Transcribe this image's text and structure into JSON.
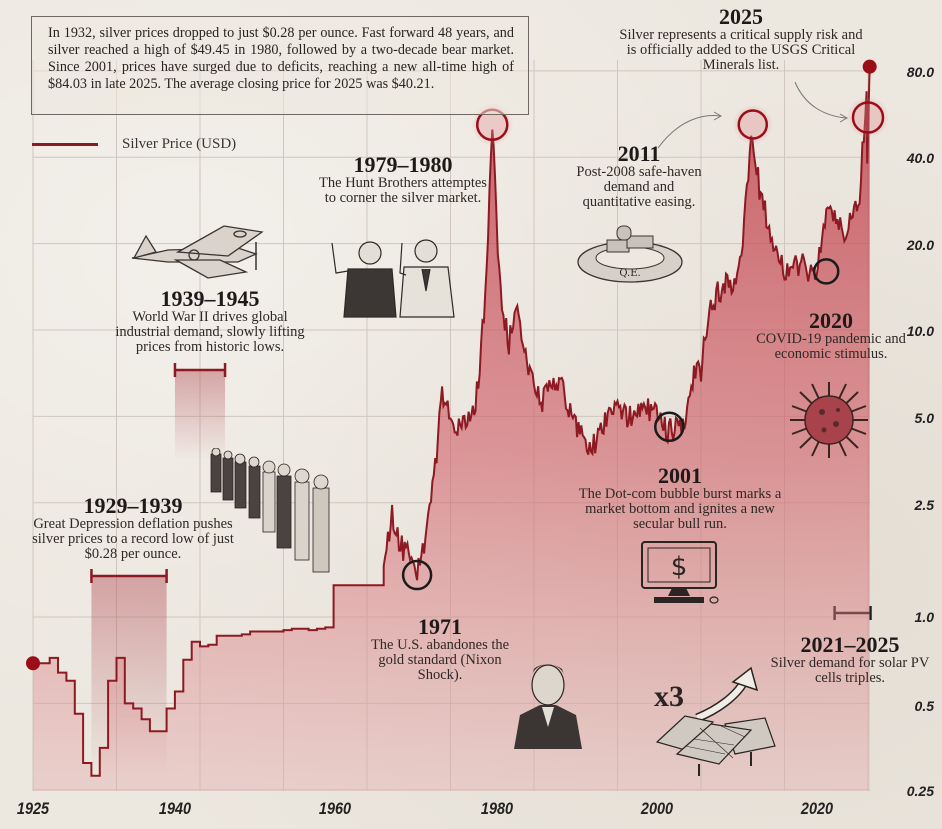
{
  "intro": {
    "text": "In 1932, silver prices dropped to just $0.28 per ounce. Fast forward 48 years, and silver reached a high of $49.45 in 1980, followed by a two-decade bear market. Since 2001, prices have surged due to deficits, reaching a new all-time high of $84.03 in late 2025. The average closing price for 2025 was $40.21."
  },
  "legend": {
    "label": "Silver Price (USD)",
    "color": "#8d1a22"
  },
  "annotations": [
    {
      "id": "ww2",
      "year": "1939–1945",
      "text": "World War II drives global industrial demand, slowly lifting prices from historic lows."
    },
    {
      "id": "depression",
      "year": "1929–1939",
      "text": "Great Depression deflation pushes silver prices to a record low of just $0.28 per ounce."
    },
    {
      "id": "hunt",
      "year": "1979–1980",
      "text": "The Hunt Brothers attemptes to corner the silver market."
    },
    {
      "id": "nixon",
      "year": "1971",
      "text": "The U.S. abandones the gold standard (Nixon Shock)."
    },
    {
      "id": "qe",
      "year": "2011",
      "text": "Post-2008 safe-haven demand and quantitative easing."
    },
    {
      "id": "usgs",
      "year": "2025",
      "text": "Silver represents a critical supply risk and is officially added to the USGS Critical Minerals list."
    },
    {
      "id": "covid",
      "year": "2020",
      "text": "COVID-19 pandemic and economic stimulus."
    },
    {
      "id": "dotcom",
      "year": "2001",
      "text": "The Dot-com bubble burst marks a market bottom and ignites a new secular bull run."
    },
    {
      "id": "solar",
      "year": "2021–2025",
      "text": "Silver demand for solar PV cells triples."
    }
  ],
  "illustrations": {
    "qe_label": "Q.E.",
    "solar_multiplier": "x3",
    "monitor_symbol": "$"
  },
  "colors": {
    "line": "#8d1a22",
    "fill": "#c9565f",
    "background": "#ece7df",
    "marker": "#9b0d17"
  },
  "chart_data": {
    "type": "area",
    "title": "",
    "xlabel": "",
    "ylabel": "Silver Price (USD)",
    "y_scale": "log",
    "ylim": [
      0.25,
      80
    ],
    "xlim": [
      1925,
      2025
    ],
    "grid": true,
    "legend_position": "top-left",
    "x_ticks": [
      "1925",
      "1940",
      "1960",
      "1980",
      "2000",
      "2020"
    ],
    "y_ticks": [
      "80.0",
      "40.0",
      "20.0",
      "10.0",
      "5.0",
      "2.5",
      "1.0",
      "0.5",
      "0.25"
    ],
    "series": [
      {
        "name": "Silver Price (USD)",
        "x": [
          1925,
          1926,
          1927,
          1928,
          1929,
          1930,
          1931,
          1932,
          1933,
          1934,
          1935,
          1936,
          1937,
          1938,
          1939,
          1940,
          1941,
          1942,
          1943,
          1944,
          1945,
          1946,
          1947,
          1948,
          1949,
          1950,
          1951,
          1952,
          1953,
          1954,
          1955,
          1956,
          1957,
          1958,
          1959,
          1960,
          1961,
          1962,
          1963,
          1964,
          1965,
          1966,
          1967,
          1968,
          1969,
          1970,
          1971,
          1972,
          1973,
          1974,
          1975,
          1976,
          1977,
          1978,
          1979,
          1980,
          1981,
          1982,
          1983,
          1984,
          1985,
          1986,
          1987,
          1988,
          1989,
          1990,
          1991,
          1992,
          1993,
          1994,
          1995,
          1996,
          1997,
          1998,
          1999,
          2000,
          2001,
          2002,
          2003,
          2004,
          2005,
          2006,
          2007,
          2008,
          2009,
          2010,
          2011,
          2012,
          2013,
          2014,
          2015,
          2016,
          2017,
          2018,
          2019,
          2020,
          2021,
          2022,
          2023,
          2024,
          2025
        ],
        "values": [
          0.69,
          0.69,
          0.72,
          0.64,
          0.6,
          0.46,
          0.31,
          0.28,
          0.35,
          0.6,
          0.72,
          0.5,
          0.48,
          0.44,
          0.4,
          0.4,
          0.48,
          0.55,
          0.71,
          0.82,
          0.79,
          0.8,
          0.86,
          0.86,
          0.86,
          0.87,
          0.89,
          0.89,
          0.89,
          0.89,
          0.9,
          0.91,
          0.91,
          0.9,
          0.91,
          0.92,
          1.29,
          1.29,
          1.29,
          1.29,
          1.29,
          1.29,
          1.55,
          2.3,
          1.8,
          1.6,
          1.4,
          1.8,
          3.0,
          6.0,
          4.8,
          4.5,
          4.7,
          5.4,
          11.0,
          49.45,
          13.0,
          9.0,
          12.5,
          8.0,
          6.2,
          5.5,
          7.0,
          6.5,
          5.5,
          4.8,
          4.0,
          3.9,
          4.3,
          5.3,
          5.2,
          5.0,
          4.9,
          5.5,
          5.2,
          5.0,
          4.37,
          4.6,
          4.9,
          6.7,
          7.3,
          11.5,
          13.4,
          15.0,
          14.7,
          20.2,
          48.0,
          31.0,
          23.8,
          19.1,
          15.7,
          17.1,
          17.0,
          15.7,
          16.2,
          26.0,
          25.1,
          21.7,
          23.4,
          28.3,
          84.03
        ]
      }
    ],
    "annotations_points": [
      {
        "year": 1932,
        "label": "record low $0.28"
      },
      {
        "year": 1971,
        "label": "Nixon Shock low"
      },
      {
        "year": 1980,
        "label": "Hunt Brothers peak $49.45"
      },
      {
        "year": 2001,
        "label": "Dot-com bottom"
      },
      {
        "year": 2011,
        "label": "Post-2008 peak"
      },
      {
        "year": 2020,
        "label": "COVID-19 low"
      },
      {
        "year": 2025,
        "label": "All-time high $84.03"
      }
    ],
    "range_bars": [
      {
        "label": "1929–1939",
        "from": 1932,
        "to": 1941
      },
      {
        "label": "1939–1945",
        "from": 1941,
        "to": 1946
      },
      {
        "label": "2021–2025",
        "from": 2021,
        "to": 2025
      }
    ]
  }
}
